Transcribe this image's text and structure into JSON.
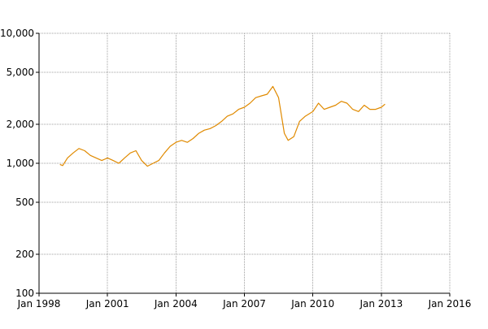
{
  "chart_data": {
    "type": "line",
    "title": "",
    "xlabel": "",
    "ylabel": "",
    "y_scale": "log",
    "xlim": [
      "1998-01-01",
      "2016-01-01"
    ],
    "ylim": [
      100,
      10000
    ],
    "grid": true,
    "legend": "none",
    "x_ticks": [
      "1998-01-01",
      "2001-01-01",
      "2004-01-01",
      "2007-01-01",
      "2010-01-01",
      "2013-01-01",
      "2016-01-01"
    ],
    "x_tick_labels": [
      "Jan 1998",
      "Jan 2001",
      "Jan 2004",
      "Jan 2007",
      "Jan 2010",
      "Jan 2013",
      "Jan 2016"
    ],
    "y_ticks": [
      100,
      200,
      500,
      1000,
      2000,
      5000,
      10000
    ],
    "y_tick_labels": [
      "100",
      "200",
      "500",
      "1,000",
      "2,000",
      "5,000",
      "10,000"
    ],
    "series": [
      {
        "color": "#e08a00",
        "x": [
          "1998-12-01",
          "1999-01-15",
          "1999-04-01",
          "1999-07-01",
          "1999-10-01",
          "2000-01-01",
          "2000-04-01",
          "2000-07-01",
          "2000-10-01",
          "2001-01-01",
          "2001-04-01",
          "2001-07-01",
          "2001-10-01",
          "2002-01-01",
          "2002-04-01",
          "2002-07-01",
          "2002-10-01",
          "2003-01-01",
          "2003-04-01",
          "2003-07-01",
          "2003-10-01",
          "2004-01-01",
          "2004-04-01",
          "2004-07-01",
          "2004-10-01",
          "2005-01-01",
          "2005-04-01",
          "2005-07-01",
          "2005-10-01",
          "2006-01-01",
          "2006-04-01",
          "2006-07-01",
          "2006-10-01",
          "2007-01-01",
          "2007-04-01",
          "2007-07-01",
          "2007-10-01",
          "2008-01-01",
          "2008-04-01",
          "2008-07-01",
          "2008-10-01",
          "2008-12-01",
          "2009-03-01",
          "2009-06-01",
          "2009-09-01",
          "2010-01-01",
          "2010-04-01",
          "2010-07-01",
          "2010-10-01",
          "2011-01-01",
          "2011-04-01",
          "2011-07-01",
          "2011-10-01",
          "2012-01-01",
          "2012-04-01",
          "2012-07-01",
          "2012-10-01",
          "2013-01-01",
          "2013-03-01"
        ],
        "values": [
          980,
          960,
          1100,
          1200,
          1300,
          1250,
          1150,
          1100,
          1050,
          1100,
          1050,
          1000,
          1100,
          1200,
          1250,
          1050,
          950,
          1000,
          1050,
          1200,
          1350,
          1450,
          1500,
          1450,
          1550,
          1700,
          1800,
          1850,
          1950,
          2100,
          2300,
          2400,
          2600,
          2700,
          2900,
          3200,
          3300,
          3400,
          3900,
          3200,
          1700,
          1500,
          1600,
          2100,
          2300,
          2500,
          2900,
          2600,
          2700,
          2800,
          3000,
          2900,
          2600,
          2500,
          2800,
          2600,
          2600,
          2700,
          2850
        ]
      }
    ]
  }
}
